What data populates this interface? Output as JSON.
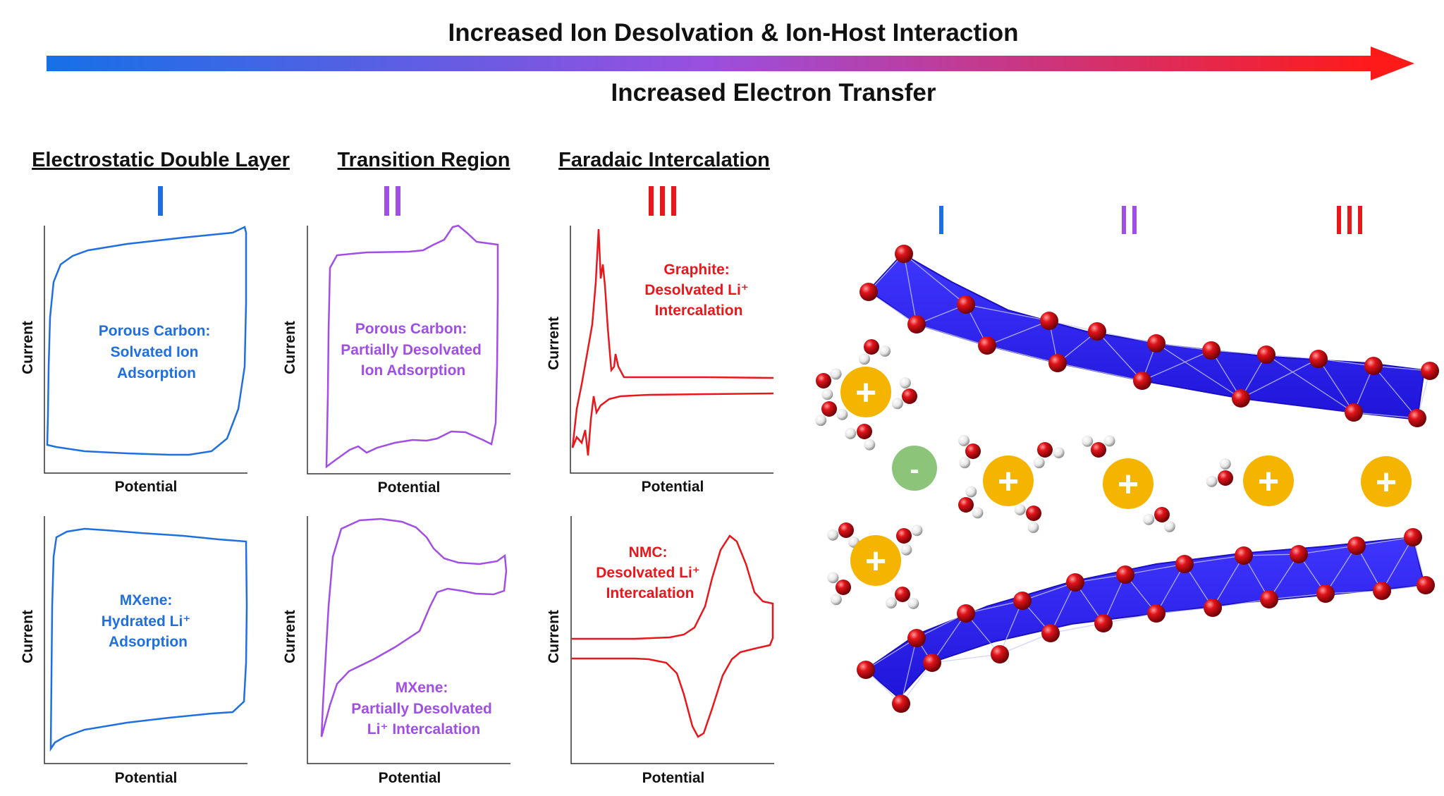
{
  "header": {
    "top_label": "Increased Ion Desolvation & Ion-Host Interaction",
    "bottom_label": "Increased Electron Transfer",
    "gradient": [
      "#1670e8",
      "#9a4fe0",
      "#ff1a1a"
    ]
  },
  "colors": {
    "blue": "#1f6fe0",
    "purple": "#a14ee6",
    "red": "#e8171c",
    "sheet": "#2b1ff5",
    "cation": "#f5b400",
    "anion": "#8cc47a"
  },
  "sections": [
    {
      "title": "Electrostatic Double Layer",
      "numeral": "I"
    },
    {
      "title": "Transition Region",
      "numeral": "II"
    },
    {
      "title": "Faradaic Intercalation",
      "numeral": "III"
    }
  ],
  "axes": {
    "x": "Potential",
    "y": "Current"
  },
  "panels": [
    {
      "lines": [
        "Porous Carbon:",
        "Solvated Ion",
        "Adsorption"
      ]
    },
    {
      "lines": [
        "Porous Carbon:",
        "Partially Desolvated",
        "Ion Adsorption"
      ]
    },
    {
      "lines": [
        "Graphite:",
        "Desolvated Li⁺",
        "Intercalation"
      ]
    },
    {
      "lines": [
        "MXene:",
        "Hydrated Li⁺",
        "Adsorption"
      ]
    },
    {
      "lines": [
        "MXene:",
        "Partially Desolvated",
        "Li⁺ Intercalation"
      ]
    },
    {
      "lines": [
        "NMC:",
        "Desolvated Li⁺",
        "Intercalation"
      ]
    }
  ],
  "schematic": {
    "numerals": [
      "I",
      "II",
      "III"
    ],
    "plus": "+",
    "minus": "-"
  }
}
